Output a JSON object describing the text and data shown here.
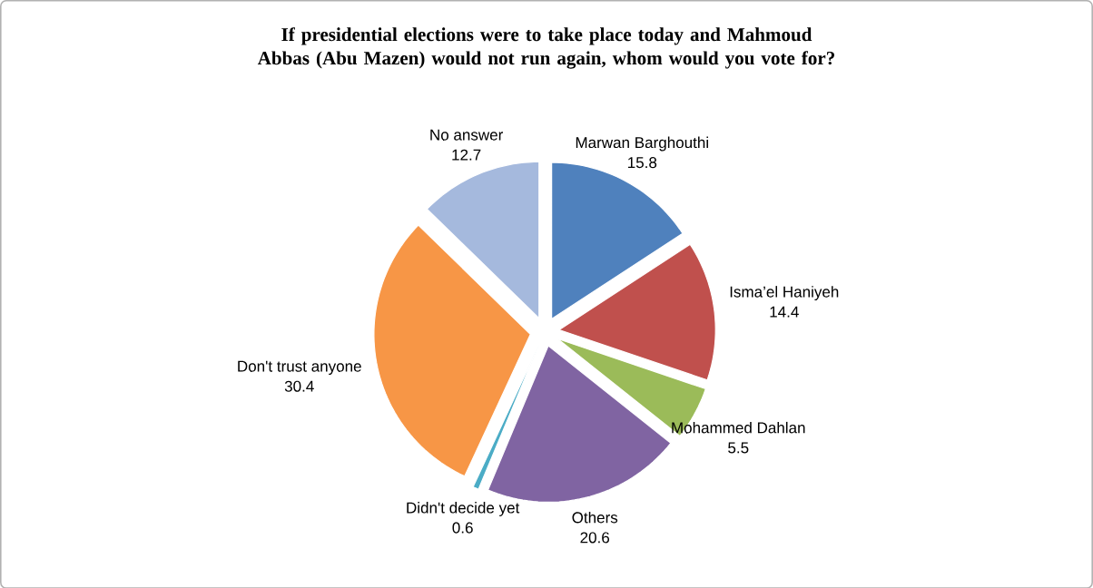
{
  "chart_data": {
    "type": "pie",
    "title": "If presidential elections were to take place today and Mahmoud Abbas (Abu Mazen) would not run again, whom would you vote for?",
    "categories": [
      "Marwan Barghouthi",
      "Isma’el Haniyeh",
      "Mohammed  Dahlan",
      "Others",
      "Didn't decide yet",
      "Don't trust anyone",
      "No answer"
    ],
    "values": [
      15.8,
      14.4,
      5.5,
      20.6,
      0.6,
      30.4,
      12.7
    ],
    "colors": [
      "#4f81bd",
      "#c0504d",
      "#9bbb59",
      "#8064a2",
      "#4bacc6",
      "#f79646",
      "#a5b9dd"
    ],
    "data_labels": true
  }
}
